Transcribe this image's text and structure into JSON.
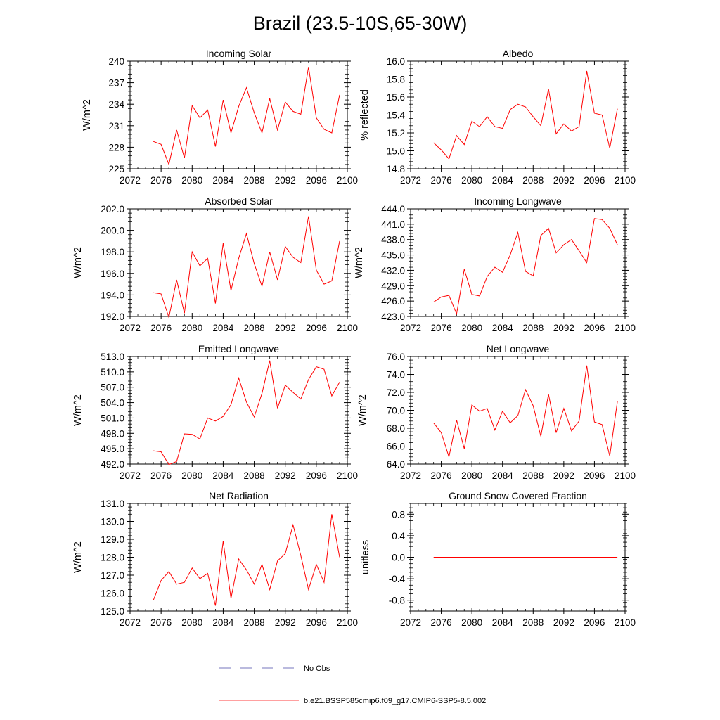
{
  "figure": {
    "title": "Brazil (23.5-10S,65-30W)",
    "series_color": "#ff0000",
    "obs_color": "#4a4aa8"
  },
  "legend": {
    "entries": [
      {
        "label": "No Obs",
        "style": "dashed",
        "color": "#4a4aa8"
      },
      {
        "label": "b.e21.BSSP585cmip6.f09_g17.CMIP6-SSP5-8.5.002",
        "style": "solid",
        "color": "#ff0000"
      }
    ]
  },
  "chart_data": [
    {
      "type": "line",
      "title": "Incoming Solar",
      "xlabel": "",
      "ylabel": "W/m^2",
      "xlim": [
        2072,
        2100
      ],
      "xticks": [
        "2072",
        "2076",
        "2080",
        "2084",
        "2088",
        "2092",
        "2096",
        "2100"
      ],
      "ylim": [
        225,
        240
      ],
      "yticks": [
        "225",
        "228",
        "231",
        "234",
        "237",
        "240"
      ],
      "grid": false,
      "x": [
        2075,
        2076,
        2077,
        2078,
        2079,
        2080,
        2081,
        2082,
        2083,
        2084,
        2085,
        2086,
        2087,
        2088,
        2089,
        2090,
        2091,
        2092,
        2093,
        2094,
        2095,
        2096,
        2097,
        2098,
        2099
      ],
      "y": [
        228.8,
        228.4,
        225.6,
        230.4,
        226.5,
        233.8,
        232.1,
        233.2,
        228.1,
        234.6,
        230.0,
        233.7,
        236.3,
        232.8,
        230.0,
        234.8,
        230.4,
        234.3,
        233.0,
        232.6,
        239.2,
        232.1,
        230.5,
        230.0,
        235.3
      ]
    },
    {
      "type": "line",
      "title": "Albedo",
      "xlabel": "",
      "ylabel": "% reflected",
      "xlim": [
        2072,
        2100
      ],
      "xticks": [
        "2072",
        "2076",
        "2080",
        "2084",
        "2088",
        "2092",
        "2096",
        "2100"
      ],
      "ylim": [
        14.8,
        16.0
      ],
      "yticks": [
        "14.8",
        "15.0",
        "15.2",
        "15.4",
        "15.6",
        "15.8",
        "16.0"
      ],
      "grid": false,
      "x": [
        2075,
        2076,
        2077,
        2078,
        2079,
        2080,
        2081,
        2082,
        2083,
        2084,
        2085,
        2086,
        2087,
        2088,
        2089,
        2090,
        2091,
        2092,
        2093,
        2094,
        2095,
        2096,
        2097,
        2098,
        2099
      ],
      "y": [
        15.09,
        15.01,
        14.91,
        15.17,
        15.07,
        15.33,
        15.27,
        15.38,
        15.27,
        15.25,
        15.46,
        15.52,
        15.49,
        15.38,
        15.28,
        15.69,
        15.19,
        15.3,
        15.22,
        15.27,
        15.89,
        15.42,
        15.4,
        15.03,
        15.47
      ]
    },
    {
      "type": "line",
      "title": "Absorbed Solar",
      "xlabel": "",
      "ylabel": "W/m^2",
      "xlim": [
        2072,
        2100
      ],
      "xticks": [
        "2072",
        "2076",
        "2080",
        "2084",
        "2088",
        "2092",
        "2096",
        "2100"
      ],
      "ylim": [
        192.0,
        202.0
      ],
      "yticks": [
        "192.0",
        "194.0",
        "196.0",
        "198.0",
        "200.0",
        "202.0"
      ],
      "grid": false,
      "x": [
        2075,
        2076,
        2077,
        2078,
        2079,
        2080,
        2081,
        2082,
        2083,
        2084,
        2085,
        2086,
        2087,
        2088,
        2089,
        2090,
        2091,
        2092,
        2093,
        2094,
        2095,
        2096,
        2097,
        2098,
        2099
      ],
      "y": [
        194.2,
        194.1,
        191.9,
        195.4,
        192.3,
        198.0,
        196.7,
        197.4,
        193.2,
        198.8,
        194.4,
        197.4,
        199.7,
        196.9,
        194.8,
        198.0,
        195.4,
        198.5,
        197.5,
        197.0,
        201.3,
        196.3,
        195.0,
        195.3,
        199.0
      ]
    },
    {
      "type": "line",
      "title": "Incoming Longwave",
      "xlabel": "",
      "ylabel": "W/m^2",
      "xlim": [
        2072,
        2100
      ],
      "xticks": [
        "2072",
        "2076",
        "2080",
        "2084",
        "2088",
        "2092",
        "2096",
        "2100"
      ],
      "ylim": [
        423.0,
        444.0
      ],
      "yticks": [
        "423.0",
        "426.0",
        "429.0",
        "432.0",
        "435.0",
        "438.0",
        "441.0",
        "444.0"
      ],
      "grid": false,
      "x": [
        2075,
        2076,
        2077,
        2078,
        2079,
        2080,
        2081,
        2082,
        2083,
        2084,
        2085,
        2086,
        2087,
        2088,
        2089,
        2090,
        2091,
        2092,
        2093,
        2094,
        2095,
        2096,
        2097,
        2098,
        2099
      ],
      "y": [
        425.8,
        426.8,
        427.1,
        423.5,
        432.2,
        427.3,
        427.0,
        430.8,
        432.6,
        431.6,
        435.0,
        439.4,
        431.8,
        430.9,
        438.8,
        440.2,
        435.4,
        437.0,
        438.0,
        435.8,
        433.5,
        442.1,
        441.9,
        440.2,
        437.0
      ]
    },
    {
      "type": "line",
      "title": "Emitted Longwave",
      "xlabel": "",
      "ylabel": "W/m^2",
      "xlim": [
        2072,
        2100
      ],
      "xticks": [
        "2072",
        "2076",
        "2080",
        "2084",
        "2088",
        "2092",
        "2096",
        "2100"
      ],
      "ylim": [
        492.0,
        513.0
      ],
      "yticks": [
        "492.0",
        "495.0",
        "498.0",
        "501.0",
        "504.0",
        "507.0",
        "510.0",
        "513.0"
      ],
      "grid": false,
      "x": [
        2075,
        2076,
        2077,
        2078,
        2079,
        2080,
        2081,
        2082,
        2083,
        2084,
        2085,
        2086,
        2087,
        2088,
        2089,
        2090,
        2091,
        2092,
        2093,
        2094,
        2095,
        2096,
        2097,
        2098,
        2099
      ],
      "y": [
        494.6,
        494.4,
        491.9,
        492.5,
        497.9,
        497.8,
        496.9,
        501.0,
        500.4,
        501.3,
        503.6,
        508.8,
        504.1,
        501.2,
        505.8,
        512.2,
        502.9,
        507.4,
        506.0,
        504.7,
        508.5,
        511.0,
        510.5,
        505.3,
        508.0
      ]
    },
    {
      "type": "line",
      "title": "Net Longwave",
      "xlabel": "",
      "ylabel": "W/m^2",
      "xlim": [
        2072,
        2100
      ],
      "xticks": [
        "2072",
        "2076",
        "2080",
        "2084",
        "2088",
        "2092",
        "2096",
        "2100"
      ],
      "ylim": [
        64.0,
        76.0
      ],
      "yticks": [
        "64.0",
        "66.0",
        "68.0",
        "70.0",
        "72.0",
        "74.0",
        "76.0"
      ],
      "grid": false,
      "x": [
        2075,
        2076,
        2077,
        2078,
        2079,
        2080,
        2081,
        2082,
        2083,
        2084,
        2085,
        2086,
        2087,
        2088,
        2089,
        2090,
        2091,
        2092,
        2093,
        2094,
        2095,
        2096,
        2097,
        2098,
        2099
      ],
      "y": [
        68.6,
        67.5,
        64.8,
        68.9,
        65.7,
        70.6,
        69.9,
        70.2,
        67.8,
        69.9,
        68.6,
        69.4,
        72.3,
        70.5,
        67.1,
        71.8,
        67.5,
        70.2,
        67.7,
        68.8,
        75.0,
        68.7,
        68.4,
        64.9,
        71.0
      ]
    },
    {
      "type": "line",
      "title": "Net Radiation",
      "xlabel": "",
      "ylabel": "W/m^2",
      "xlim": [
        2072,
        2100
      ],
      "xticks": [
        "2072",
        "2076",
        "2080",
        "2084",
        "2088",
        "2092",
        "2096",
        "2100"
      ],
      "ylim": [
        125.0,
        131.0
      ],
      "yticks": [
        "125.0",
        "126.0",
        "127.0",
        "128.0",
        "129.0",
        "130.0",
        "131.0"
      ],
      "grid": false,
      "x": [
        2075,
        2076,
        2077,
        2078,
        2079,
        2080,
        2081,
        2082,
        2083,
        2084,
        2085,
        2086,
        2087,
        2088,
        2089,
        2090,
        2091,
        2092,
        2093,
        2094,
        2095,
        2096,
        2097,
        2098,
        2099
      ],
      "y": [
        125.6,
        126.7,
        127.2,
        126.5,
        126.6,
        127.4,
        126.8,
        127.1,
        125.3,
        128.9,
        125.7,
        127.9,
        127.3,
        126.5,
        127.6,
        126.2,
        127.8,
        128.2,
        129.8,
        128.1,
        126.2,
        127.6,
        126.6,
        130.4,
        128.0
      ]
    },
    {
      "type": "line",
      "title": "Ground Snow Covered Fraction",
      "xlabel": "",
      "ylabel": "unitless",
      "xlim": [
        2072,
        2100
      ],
      "xticks": [
        "2072",
        "2076",
        "2080",
        "2084",
        "2088",
        "2092",
        "2096",
        "2100"
      ],
      "ylim": [
        -1.0,
        1.0
      ],
      "yticks": [
        "-0.8",
        "-0.4",
        "0.0",
        "0.4",
        "0.8"
      ],
      "grid": false,
      "x": [
        2075,
        2076,
        2077,
        2078,
        2079,
        2080,
        2081,
        2082,
        2083,
        2084,
        2085,
        2086,
        2087,
        2088,
        2089,
        2090,
        2091,
        2092,
        2093,
        2094,
        2095,
        2096,
        2097,
        2098,
        2099
      ],
      "y": [
        0,
        0,
        0,
        0,
        0,
        0,
        0,
        0,
        0,
        0,
        0,
        0,
        0,
        0,
        0,
        0,
        0,
        0,
        0,
        0,
        0,
        0,
        0,
        0,
        0
      ]
    }
  ]
}
